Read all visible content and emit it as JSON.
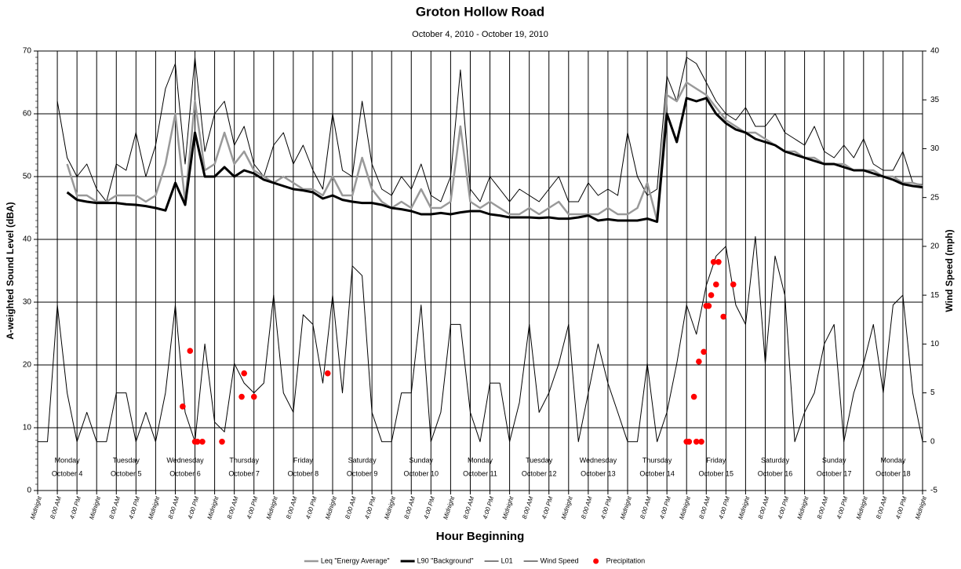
{
  "chart_data": {
    "type": "line",
    "title": "Groton Hollow Road",
    "subtitle": "October 4, 2010 - October 19, 2010",
    "xlabel": "Hour Beginning",
    "ylabel": "A-weighted Sound Level (dBA)",
    "y2label": "Wind Speed (mph)",
    "xlim": [
      0,
      360
    ],
    "ylim": [
      0,
      70
    ],
    "yticks": [
      0,
      10,
      20,
      30,
      40,
      50,
      60,
      70
    ],
    "y2lim": [
      -5,
      40
    ],
    "y2ticks": [
      -5,
      0,
      5,
      10,
      15,
      20,
      25,
      30,
      35,
      40
    ],
    "grid": true,
    "legend": "bottom",
    "xticks": [
      {
        "value": 0,
        "label": "Midnight"
      },
      {
        "value": 8,
        "label": "8:00 AM"
      },
      {
        "value": 16,
        "label": "4:00 PM"
      },
      {
        "value": 24,
        "label": "Midnight"
      },
      {
        "value": 32,
        "label": "8:00 AM"
      },
      {
        "value": 40,
        "label": "4:00 PM"
      },
      {
        "value": 48,
        "label": "Midnight"
      },
      {
        "value": 56,
        "label": "8:00 AM"
      },
      {
        "value": 64,
        "label": "4:00 PM"
      },
      {
        "value": 72,
        "label": "Midnight"
      },
      {
        "value": 80,
        "label": "8:00 AM"
      },
      {
        "value": 88,
        "label": "4:00 PM"
      },
      {
        "value": 96,
        "label": "Midnight"
      },
      {
        "value": 104,
        "label": "8:00 AM"
      },
      {
        "value": 112,
        "label": "4:00 PM"
      },
      {
        "value": 120,
        "label": "Midnight"
      },
      {
        "value": 128,
        "label": "8:00 AM"
      },
      {
        "value": 136,
        "label": "4:00 PM"
      },
      {
        "value": 144,
        "label": "Midnight"
      },
      {
        "value": 152,
        "label": "8:00 AM"
      },
      {
        "value": 160,
        "label": "4:00 PM"
      },
      {
        "value": 168,
        "label": "Midnight"
      },
      {
        "value": 176,
        "label": "8:00 AM"
      },
      {
        "value": 184,
        "label": "4:00 PM"
      },
      {
        "value": 192,
        "label": "Midnight"
      },
      {
        "value": 200,
        "label": "8:00 AM"
      },
      {
        "value": 208,
        "label": "4:00 PM"
      },
      {
        "value": 216,
        "label": "Midnight"
      },
      {
        "value": 224,
        "label": "8:00 AM"
      },
      {
        "value": 232,
        "label": "4:00 PM"
      },
      {
        "value": 240,
        "label": "Midnight"
      },
      {
        "value": 248,
        "label": "8:00 AM"
      },
      {
        "value": 256,
        "label": "4:00 PM"
      },
      {
        "value": 264,
        "label": "Midnight"
      },
      {
        "value": 272,
        "label": "8:00 AM"
      },
      {
        "value": 280,
        "label": "4:00 PM"
      },
      {
        "value": 288,
        "label": "Midnight"
      },
      {
        "value": 296,
        "label": "8:00 AM"
      },
      {
        "value": 304,
        "label": "4:00 PM"
      },
      {
        "value": 312,
        "label": "Midnight"
      },
      {
        "value": 320,
        "label": "8:00 AM"
      },
      {
        "value": 328,
        "label": "4:00 PM"
      },
      {
        "value": 336,
        "label": "Midnight"
      },
      {
        "value": 344,
        "label": "8:00 AM"
      },
      {
        "value": 352,
        "label": "4:00 PM"
      },
      {
        "value": 360,
        "label": "Midnight"
      }
    ],
    "days": [
      {
        "day": "Monday",
        "date": "October 4"
      },
      {
        "day": "Tuesday",
        "date": "October 5"
      },
      {
        "day": "Wednesday",
        "date": "October 6"
      },
      {
        "day": "Thursday",
        "date": "October 7"
      },
      {
        "day": "Friday",
        "date": "October 8"
      },
      {
        "day": "Saturday",
        "date": "October 9"
      },
      {
        "day": "Sunday",
        "date": "October 10"
      },
      {
        "day": "Monday",
        "date": "October 11"
      },
      {
        "day": "Tuesday",
        "date": "October 12"
      },
      {
        "day": "Wednesday",
        "date": "October 13"
      },
      {
        "day": "Thursday",
        "date": "October 14"
      },
      {
        "day": "Friday",
        "date": "October 15"
      },
      {
        "day": "Saturday",
        "date": "October 16"
      },
      {
        "day": "Sunday",
        "date": "October 17"
      },
      {
        "day": "Monday",
        "date": "October 18"
      }
    ],
    "x": [
      0,
      4,
      8,
      12,
      16,
      20,
      24,
      28,
      32,
      36,
      40,
      44,
      48,
      52,
      56,
      60,
      64,
      68,
      72,
      76,
      80,
      84,
      88,
      92,
      96,
      100,
      104,
      108,
      112,
      116,
      120,
      124,
      128,
      132,
      136,
      140,
      144,
      148,
      152,
      156,
      160,
      164,
      168,
      172,
      176,
      180,
      184,
      188,
      192,
      196,
      200,
      204,
      208,
      212,
      216,
      220,
      224,
      228,
      232,
      236,
      240,
      244,
      248,
      252,
      256,
      260,
      264,
      268,
      272,
      276,
      280,
      284,
      288,
      292,
      296,
      300,
      304,
      308,
      312,
      316,
      320,
      324,
      328,
      332,
      336,
      340,
      344,
      348,
      352,
      356,
      360
    ],
    "series": [
      {
        "name": "Leq \"Energy Average\"",
        "color": "#999999",
        "width": 2.5,
        "values": [
          null,
          null,
          null,
          52,
          47,
          47,
          46,
          46,
          47,
          47,
          47,
          46,
          47,
          52,
          60,
          46,
          62,
          51,
          52,
          57,
          52,
          54,
          51,
          50,
          49,
          50,
          49,
          48,
          48,
          47,
          50,
          47,
          47,
          53,
          48,
          46,
          45,
          46,
          45,
          48,
          45,
          45,
          46,
          58,
          46,
          45,
          46,
          45,
          44,
          44,
          45,
          44,
          45,
          46,
          44,
          44,
          44,
          44,
          45,
          44,
          44,
          45,
          49,
          43,
          63,
          62,
          65,
          64,
          63,
          61,
          59,
          58,
          57,
          57,
          56,
          55,
          54,
          54,
          53,
          53,
          52,
          52,
          52,
          51,
          51,
          51,
          50,
          50,
          49,
          49,
          48.5
        ]
      },
      {
        "name": "L90 \"Background\"",
        "color": "#000000",
        "width": 3,
        "values": [
          null,
          null,
          null,
          47.5,
          46.3,
          46,
          45.8,
          45.8,
          45.8,
          45.6,
          45.5,
          45.3,
          45,
          44.6,
          49,
          45.5,
          57,
          50,
          50,
          51.5,
          50,
          51,
          50.5,
          49.5,
          49,
          48.5,
          48,
          47.8,
          47.5,
          46.5,
          47,
          46.3,
          46,
          45.8,
          45.8,
          45.5,
          45,
          44.8,
          44.5,
          44,
          44,
          44.2,
          44,
          44.3,
          44.5,
          44.5,
          44,
          43.8,
          43.5,
          43.5,
          43.5,
          43.4,
          43.5,
          43.3,
          43.3,
          43.5,
          43.8,
          43,
          43.2,
          43,
          43,
          43,
          43.3,
          42.8,
          60,
          55.5,
          62.5,
          62,
          62.5,
          60,
          58.5,
          57.5,
          57,
          56,
          55.5,
          55,
          54,
          53.5,
          53,
          52.5,
          52,
          52,
          51.5,
          51,
          51,
          50.5,
          50,
          49.5,
          48.8,
          48.5,
          48.3
        ]
      },
      {
        "name": "L01",
        "color": "#000000",
        "width": 1,
        "values": [
          null,
          null,
          62,
          53,
          50,
          52,
          48,
          46,
          52,
          51,
          57,
          50,
          55,
          64,
          68,
          52,
          69,
          54,
          60,
          62,
          55,
          58,
          52,
          50,
          55,
          57,
          52,
          55,
          51,
          48,
          60,
          51,
          50,
          62,
          52,
          48,
          47,
          50,
          48,
          52,
          47,
          46,
          50,
          67,
          48,
          46,
          50,
          48,
          46,
          48,
          47,
          46,
          48,
          50,
          46,
          46,
          49,
          47,
          48,
          47,
          57,
          50,
          47,
          48,
          66,
          62,
          69,
          68,
          65,
          62,
          60,
          59,
          61,
          58,
          58,
          60,
          57,
          56,
          55,
          58,
          54,
          53,
          55,
          53,
          56,
          52,
          51,
          51,
          54,
          49,
          48.7
        ]
      },
      {
        "name": "Wind Speed",
        "color": "#000000",
        "width": 1,
        "axis": "y2",
        "values": [
          0,
          0,
          14,
          5,
          0,
          3,
          0,
          0,
          5,
          5,
          0,
          3,
          0,
          5,
          14,
          3,
          0,
          10,
          2,
          1,
          8,
          6,
          5,
          6,
          15,
          5,
          3,
          13,
          12,
          6,
          15,
          5,
          18,
          17,
          3,
          0,
          0,
          5,
          5,
          14,
          0,
          3,
          12,
          12,
          3,
          0,
          6,
          6,
          0,
          4,
          12,
          3,
          5,
          8,
          12,
          0,
          5,
          10,
          6,
          3,
          0,
          0,
          8,
          0,
          3,
          8,
          14,
          11,
          16,
          19,
          20,
          14,
          12,
          21,
          8,
          19,
          15,
          0,
          3,
          5,
          10,
          12,
          0,
          5,
          8,
          12,
          5,
          14,
          15,
          5,
          0
        ]
      },
      {
        "name": "Precipitation",
        "color": "#ff0000",
        "axis": "y2",
        "marker": "circle",
        "x": [
          59,
          62,
          64,
          65,
          67,
          75,
          83,
          84,
          88,
          118,
          264,
          265,
          267,
          268,
          269,
          270,
          271,
          272,
          273,
          274,
          275,
          276,
          277,
          279,
          283
        ],
        "values": [
          3.6,
          9.3,
          0,
          0,
          0,
          0,
          4.6,
          7,
          4.6,
          7,
          0,
          0,
          4.6,
          0,
          8.2,
          0,
          9.2,
          13.9,
          13.9,
          15,
          18.4,
          16.1,
          18.4,
          12.8,
          16.1
        ]
      }
    ]
  }
}
